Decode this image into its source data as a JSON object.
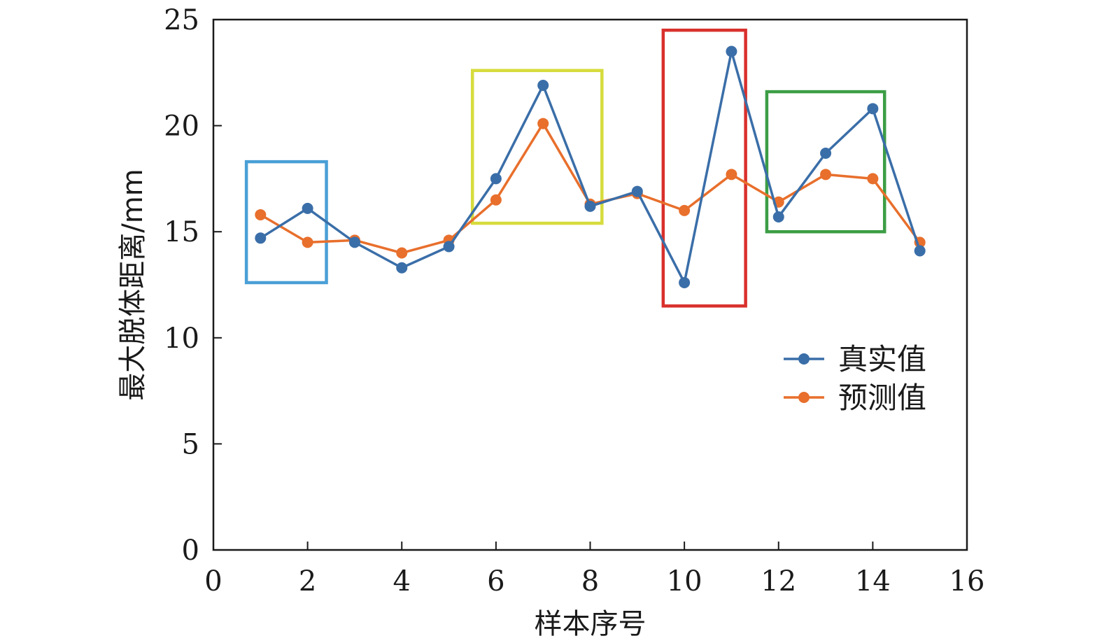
{
  "chart_data": {
    "type": "line",
    "title": "",
    "xlabel": "样本序号",
    "ylabel": "最大脱体距离/mm",
    "xlim": [
      0,
      16
    ],
    "ylim": [
      0,
      25
    ],
    "xticks": [
      0,
      2,
      4,
      6,
      8,
      10,
      12,
      14,
      16
    ],
    "yticks": [
      0,
      5,
      10,
      15,
      20,
      25
    ],
    "grid": false,
    "legend_position": "right",
    "x": [
      1,
      2,
      3,
      4,
      5,
      6,
      7,
      8,
      9,
      10,
      11,
      12,
      13,
      14,
      15
    ],
    "series": [
      {
        "name": "真实值",
        "color": "#3a6ea8",
        "values": [
          14.7,
          16.1,
          14.5,
          13.3,
          14.3,
          17.5,
          21.9,
          16.2,
          16.9,
          12.6,
          23.5,
          15.7,
          18.7,
          20.8,
          14.1
        ]
      },
      {
        "name": "预测值",
        "color": "#e86f2c",
        "values": [
          15.8,
          14.5,
          14.6,
          14.0,
          14.6,
          16.5,
          20.1,
          16.3,
          16.8,
          16.0,
          17.7,
          16.4,
          17.7,
          17.5,
          14.5
        ]
      }
    ],
    "highlight_boxes": [
      {
        "color": "#4a9fd6",
        "x_range": [
          0.7,
          2.4
        ],
        "y_range": [
          12.6,
          18.3
        ]
      },
      {
        "color": "#d6dc3c",
        "x_range": [
          5.5,
          8.25
        ],
        "y_range": [
          15.4,
          22.6
        ]
      },
      {
        "color": "#d9302c",
        "x_range": [
          9.55,
          11.3
        ],
        "y_range": [
          11.5,
          24.5
        ]
      },
      {
        "color": "#3c9d45",
        "x_range": [
          11.75,
          14.25
        ],
        "y_range": [
          15.0,
          21.6
        ]
      }
    ]
  }
}
